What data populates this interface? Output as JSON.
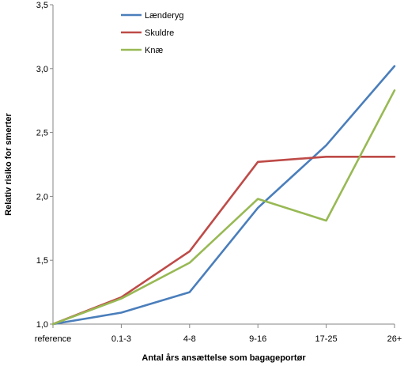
{
  "chart_data": {
    "type": "line",
    "categories": [
      "reference",
      "0.1-3",
      "4-8",
      "9-16",
      "17-25",
      "26+"
    ],
    "series": [
      {
        "name": "Lænderyg",
        "color": "#4a7ebb",
        "values": [
          1.0,
          1.09,
          1.25,
          1.91,
          2.4,
          3.02
        ]
      },
      {
        "name": "Skuldre",
        "color": "#be4b48",
        "values": [
          1.0,
          1.21,
          1.57,
          2.27,
          2.31,
          2.31
        ]
      },
      {
        "name": "Knæ",
        "color": "#98b954",
        "values": [
          1.0,
          1.2,
          1.48,
          1.98,
          1.81,
          2.83
        ]
      }
    ],
    "xlabel": "Antal års ansættelse som bagageportør",
    "ylabel": "Relativ risiko for smerter",
    "ylim": [
      1.0,
      3.5
    ],
    "yticks": [
      "1,0",
      "1,5",
      "2,0",
      "2,5",
      "3,0",
      "3,5"
    ],
    "ytick_values": [
      1.0,
      1.5,
      2.0,
      2.5,
      3.0,
      3.5
    ],
    "grid": false,
    "legend_position": "top-left"
  }
}
